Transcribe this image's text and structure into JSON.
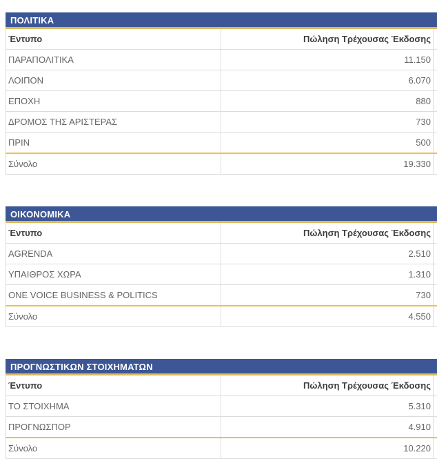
{
  "colors": {
    "panel_header_bg": "#3d5796",
    "panel_header_text": "#ffffff",
    "header_underline_gold": "#debb58",
    "total_border_gold": "#ecc14b",
    "row_border": "#dcdcdc",
    "column_header_text": "#3d3d3d",
    "cell_text": "#666666"
  },
  "columns": {
    "publication": "Έντυπο",
    "sales": "Πώληση Τρέχουσας Έκδοσης"
  },
  "tables": [
    {
      "title": "ΠΟΛΙΤΙΚΑ",
      "rows": [
        {
          "publication": "ΠΑΡΑΠΟΛΙΤΙΚΑ",
          "sales": "11.150"
        },
        {
          "publication": "ΛΟΙΠΟΝ",
          "sales": "6.070"
        },
        {
          "publication": "ΕΠΟΧΗ",
          "sales": "880"
        },
        {
          "publication": "ΔΡΟΜΟΣ ΤΗΣ ΑΡΙΣΤΕΡΑΣ",
          "sales": "730"
        },
        {
          "publication": "ΠΡΙΝ",
          "sales": "500"
        }
      ],
      "total": {
        "label": "Σύνολο",
        "value": "19.330"
      }
    },
    {
      "title": "ΟΙΚΟΝΟΜΙΚΑ",
      "rows": [
        {
          "publication": "AGRENDA",
          "sales": "2.510"
        },
        {
          "publication": "ΥΠΑΙΘΡΟΣ ΧΩΡΑ",
          "sales": "1.310"
        },
        {
          "publication": "ONE VOICE BUSINESS & POLITICS",
          "sales": "730"
        }
      ],
      "total": {
        "label": "Σύνολο",
        "value": "4.550"
      }
    },
    {
      "title": "ΠΡΟΓΝΩΣΤΙΚΩΝ ΣΤΟΙΧΗΜΑΤΩΝ",
      "rows": [
        {
          "publication": "ΤΟ ΣΤΟΙΧΗΜΑ",
          "sales": "5.310"
        },
        {
          "publication": "ΠΡΟΓΝΩΣΠΟΡ",
          "sales": "4.910"
        }
      ],
      "total": {
        "label": "Σύνολο",
        "value": "10.220"
      }
    }
  ]
}
